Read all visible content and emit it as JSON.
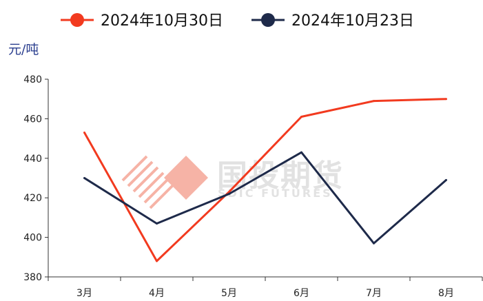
{
  "chart_data": {
    "type": "line",
    "unit": "元/吨",
    "categories": [
      "3月",
      "4月",
      "5月",
      "6月",
      "7月",
      "8月"
    ],
    "ylim": [
      380,
      480
    ],
    "yticks": [
      380,
      400,
      420,
      440,
      460,
      480
    ],
    "grid": false,
    "legend_position": "top",
    "series": [
      {
        "name": "2024年10月30日",
        "values": [
          453,
          388,
          423,
          461,
          469,
          470
        ],
        "color": "#f23a1f"
      },
      {
        "name": "2024年10月23日",
        "values": [
          430,
          407,
          422,
          443,
          397,
          429
        ],
        "color": "#1e2a4a"
      }
    ]
  },
  "watermark": {
    "cn": "国投期货",
    "en": "SDIC FUTURES",
    "logo_color": "#f6b3a6"
  },
  "colors": {
    "unit": "#2b3f8f",
    "axis": "#333333"
  }
}
